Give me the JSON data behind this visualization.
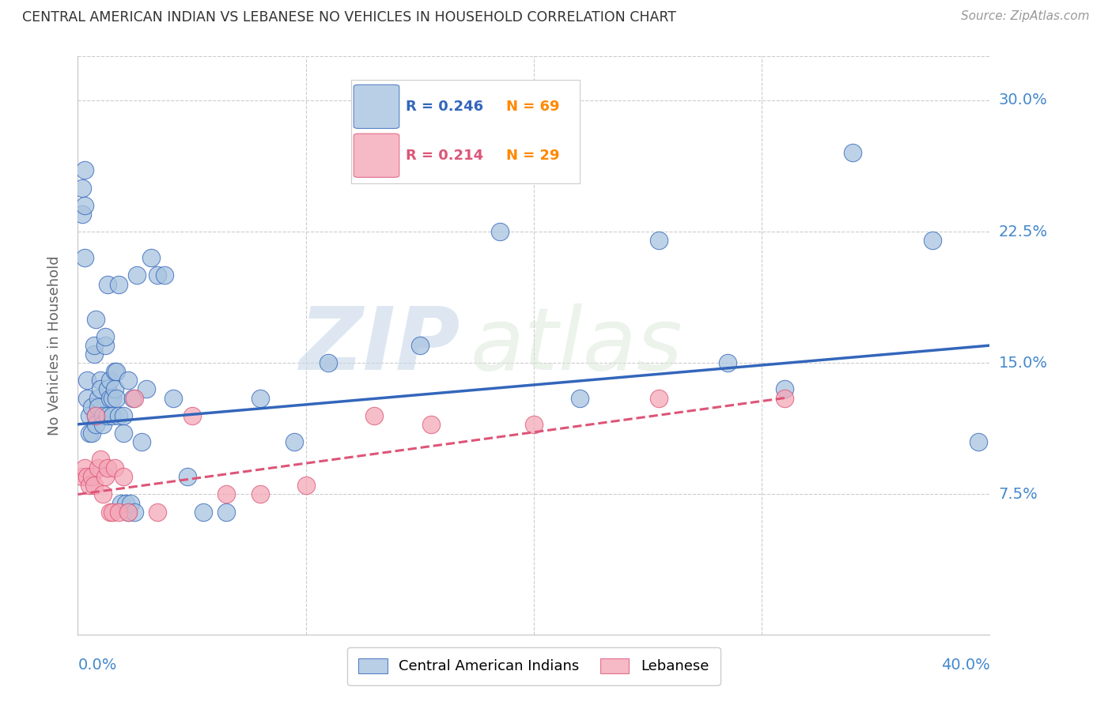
{
  "title": "CENTRAL AMERICAN INDIAN VS LEBANESE NO VEHICLES IN HOUSEHOLD CORRELATION CHART",
  "source": "Source: ZipAtlas.com",
  "ylabel": "No Vehicles in Household",
  "yticks": [
    0.0,
    0.075,
    0.15,
    0.225,
    0.3
  ],
  "ytick_labels": [
    "",
    "7.5%",
    "15.0%",
    "22.5%",
    "30.0%"
  ],
  "xlim": [
    0.0,
    0.4
  ],
  "ylim": [
    -0.005,
    0.325
  ],
  "legend_r1": "R = 0.246",
  "legend_n1": "N = 69",
  "legend_r2": "R = 0.214",
  "legend_n2": "N = 29",
  "color_blue": "#A8C4E0",
  "color_pink": "#F4A8B8",
  "color_line_blue": "#3366BB",
  "color_line_pink": "#DD5577",
  "color_axis_labels": "#4488CC",
  "watermark_zip": "ZIP",
  "watermark_atlas": "atlas",
  "blue_x": [
    0.002,
    0.002,
    0.003,
    0.004,
    0.004,
    0.005,
    0.005,
    0.006,
    0.006,
    0.007,
    0.007,
    0.008,
    0.008,
    0.009,
    0.009,
    0.01,
    0.01,
    0.011,
    0.011,
    0.012,
    0.012,
    0.013,
    0.013,
    0.014,
    0.014,
    0.015,
    0.015,
    0.016,
    0.016,
    0.017,
    0.017,
    0.018,
    0.019,
    0.02,
    0.02,
    0.021,
    0.022,
    0.022,
    0.023,
    0.024,
    0.025,
    0.026,
    0.028,
    0.03,
    0.032,
    0.035,
    0.038,
    0.042,
    0.048,
    0.055,
    0.065,
    0.08,
    0.095,
    0.11,
    0.15,
    0.185,
    0.2,
    0.22,
    0.255,
    0.285,
    0.31,
    0.34,
    0.375,
    0.395,
    0.003,
    0.003,
    0.008,
    0.013,
    0.018
  ],
  "blue_y": [
    0.235,
    0.25,
    0.21,
    0.13,
    0.14,
    0.12,
    0.11,
    0.125,
    0.11,
    0.155,
    0.16,
    0.12,
    0.115,
    0.13,
    0.125,
    0.14,
    0.135,
    0.12,
    0.115,
    0.16,
    0.165,
    0.135,
    0.12,
    0.14,
    0.13,
    0.13,
    0.12,
    0.145,
    0.135,
    0.145,
    0.13,
    0.12,
    0.07,
    0.11,
    0.12,
    0.07,
    0.14,
    0.065,
    0.07,
    0.13,
    0.065,
    0.2,
    0.105,
    0.135,
    0.21,
    0.2,
    0.2,
    0.13,
    0.085,
    0.065,
    0.065,
    0.13,
    0.105,
    0.15,
    0.16,
    0.225,
    0.29,
    0.13,
    0.22,
    0.15,
    0.135,
    0.27,
    0.22,
    0.105,
    0.26,
    0.24,
    0.175,
    0.195,
    0.195
  ],
  "pink_x": [
    0.002,
    0.003,
    0.004,
    0.005,
    0.006,
    0.007,
    0.008,
    0.009,
    0.01,
    0.011,
    0.012,
    0.013,
    0.014,
    0.015,
    0.016,
    0.018,
    0.02,
    0.022,
    0.025,
    0.035,
    0.05,
    0.065,
    0.08,
    0.1,
    0.13,
    0.155,
    0.2,
    0.255,
    0.31
  ],
  "pink_y": [
    0.085,
    0.09,
    0.085,
    0.08,
    0.085,
    0.08,
    0.12,
    0.09,
    0.095,
    0.075,
    0.085,
    0.09,
    0.065,
    0.065,
    0.09,
    0.065,
    0.085,
    0.065,
    0.13,
    0.065,
    0.12,
    0.075,
    0.075,
    0.08,
    0.12,
    0.115,
    0.115,
    0.13,
    0.13
  ],
  "blue_trend_x": [
    0.0,
    0.4
  ],
  "blue_trend_y": [
    0.115,
    0.16
  ],
  "pink_trend_x": [
    0.0,
    0.31
  ],
  "pink_trend_y": [
    0.075,
    0.13
  ]
}
